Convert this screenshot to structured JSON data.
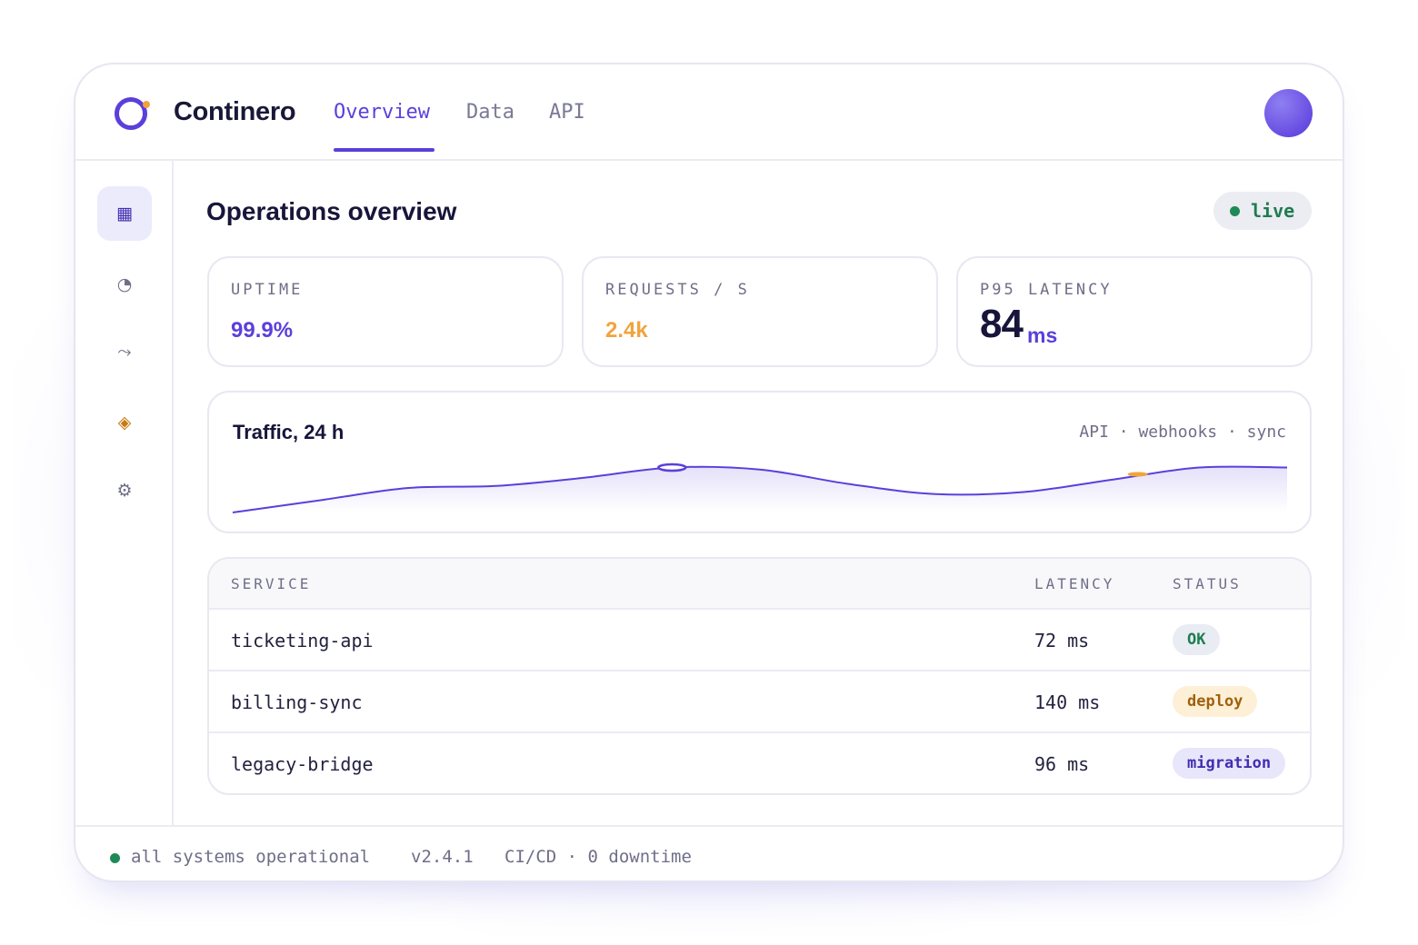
{
  "app": {
    "name": "Continero"
  },
  "nav": {
    "tabs": [
      {
        "label": "Overview",
        "active": true
      },
      {
        "label": "Data",
        "active": false
      },
      {
        "label": "API",
        "active": false
      }
    ]
  },
  "sidebar": {
    "items": [
      {
        "icon": "dashboard-grid-icon",
        "glyph": "▦",
        "active": true
      },
      {
        "icon": "pie-chart-icon",
        "glyph": "◔",
        "active": false
      },
      {
        "icon": "flow-arrow-icon",
        "glyph": "⤳",
        "active": false
      },
      {
        "icon": "diamond-icon",
        "glyph": "◈",
        "active": false
      },
      {
        "icon": "settings-gear-icon",
        "glyph": "⚙",
        "active": false
      }
    ]
  },
  "main": {
    "title": "Operations overview",
    "live_label": "live"
  },
  "stats": [
    {
      "label": "UPTIME",
      "value": "99.9%",
      "color": "#5b3fdc"
    },
    {
      "label": "REQUESTS / S",
      "value": "2.4k",
      "color": "#f0a43c"
    },
    {
      "label": "P95 LATENCY",
      "value": "84",
      "unit": "ms",
      "color": "#17153a"
    }
  ],
  "traffic": {
    "title": "Traffic, 24 h",
    "legend": "API · webhooks · sync"
  },
  "chart_data": {
    "type": "area",
    "title": "Traffic, 24 h",
    "x": [
      0,
      1,
      2,
      3,
      4,
      5,
      6,
      7,
      8,
      9,
      10,
      11,
      12
    ],
    "series": [
      {
        "name": "",
        "values": [
          8,
          14,
          20,
          21,
          25,
          30,
          29,
          22,
          17,
          18,
          24,
          30,
          30
        ]
      }
    ],
    "markers": [
      {
        "x": 5,
        "color": "#5b3fdc"
      },
      {
        "x": 10.3,
        "color": "#f0a43c"
      }
    ],
    "ylim": [
      0,
      40
    ],
    "color": "#5b3fdc"
  },
  "table": {
    "headers": {
      "service": "SERVICE",
      "latency": "LATENCY",
      "status": "STATUS"
    },
    "rows": [
      {
        "service": "ticketing-api",
        "latency": "72 ms",
        "status": "OK",
        "status_bg": "#e9ecf3",
        "status_fg": "#1e7d4f"
      },
      {
        "service": "billing-sync",
        "latency": "140 ms",
        "status": "deploy",
        "status_bg": "#fdf0d6",
        "status_fg": "#a0610e"
      },
      {
        "service": "legacy-bridge",
        "latency": "96 ms",
        "status": "migration",
        "status_bg": "#e8e6fb",
        "status_fg": "#3f2fb0"
      }
    ]
  },
  "footer": {
    "status": "all systems operational",
    "version": "v2.4.1",
    "pipeline": "CI/CD · 0 downtime"
  },
  "colors": {
    "accent": "#5b3fdc",
    "warning": "#f0a43c",
    "success": "#1e8a55"
  }
}
